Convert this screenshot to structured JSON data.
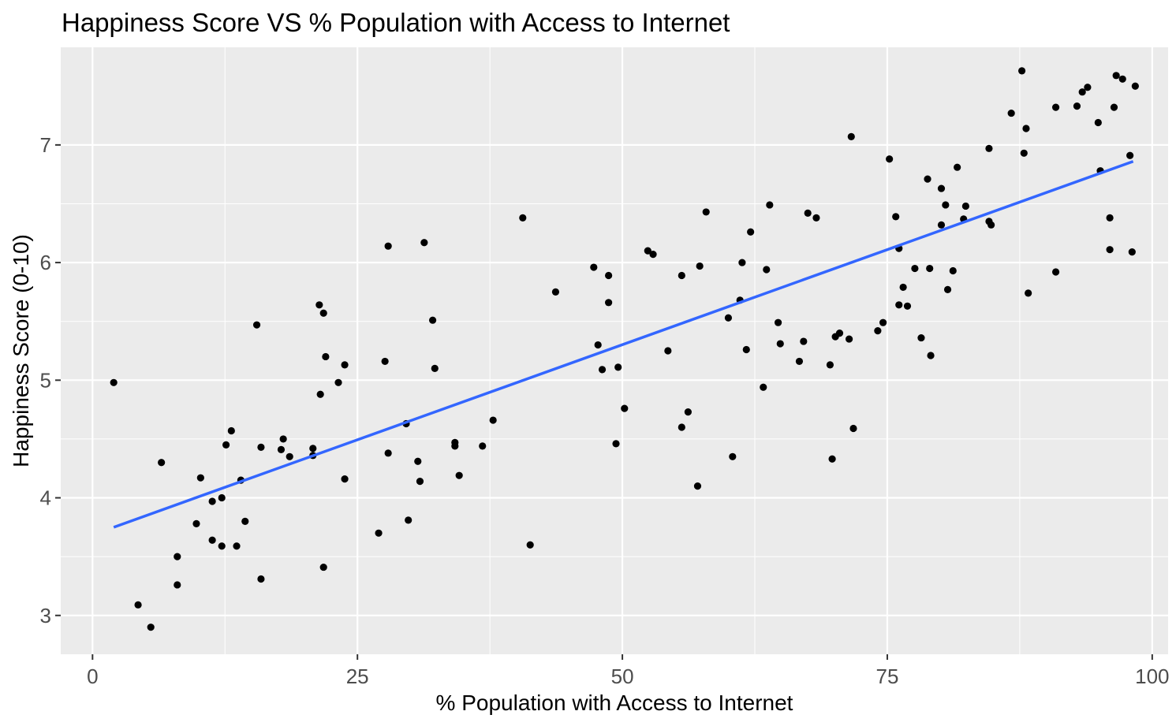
{
  "chart_data": {
    "type": "scatter",
    "title": "Happiness Score VS % Population with Access to Internet",
    "xlabel": "% Population with Access to Internet",
    "ylabel": "Happiness Score (0-10)",
    "xlim": [
      -3,
      101.5
    ],
    "ylim": [
      2.67,
      7.83
    ],
    "x_ticks": [
      0,
      25,
      50,
      75,
      100
    ],
    "x_tick_labels": [
      "0",
      "25",
      "50",
      "75",
      "100"
    ],
    "y_ticks": [
      3,
      4,
      5,
      6,
      7
    ],
    "y_tick_labels": [
      "3",
      "4",
      "5",
      "6",
      "7"
    ],
    "grid": true,
    "legend": "none",
    "colors": {
      "panel": "#ebebeb",
      "grid": "#ffffff",
      "points": "#000000",
      "trend": "#3366ff"
    },
    "trend_line": {
      "x": [
        2,
        98.2
      ],
      "y": [
        3.75,
        6.86
      ]
    },
    "points": [
      [
        2,
        4.98
      ],
      [
        4.3,
        3.09
      ],
      [
        5.5,
        2.9
      ],
      [
        6.5,
        4.3
      ],
      [
        8,
        3.5
      ],
      [
        8,
        3.26
      ],
      [
        9.8,
        3.78
      ],
      [
        10.2,
        4.17
      ],
      [
        11.3,
        3.97
      ],
      [
        11.3,
        3.64
      ],
      [
        12.2,
        4.0
      ],
      [
        12.2,
        3.59
      ],
      [
        12.6,
        4.45
      ],
      [
        13.1,
        4.57
      ],
      [
        13.6,
        3.59
      ],
      [
        14,
        4.15
      ],
      [
        14.4,
        3.8
      ],
      [
        15.5,
        5.47
      ],
      [
        15.9,
        4.43
      ],
      [
        15.9,
        3.31
      ],
      [
        17.8,
        4.41
      ],
      [
        18,
        4.5
      ],
      [
        18.6,
        4.35
      ],
      [
        20.8,
        4.42
      ],
      [
        20.8,
        4.36
      ],
      [
        21.4,
        5.64
      ],
      [
        21.5,
        4.88
      ],
      [
        21.8,
        5.57
      ],
      [
        21.8,
        3.41
      ],
      [
        22,
        5.2
      ],
      [
        23.2,
        4.98
      ],
      [
        23.8,
        5.13
      ],
      [
        23.8,
        4.16
      ],
      [
        27,
        3.7
      ],
      [
        27.6,
        5.16
      ],
      [
        27.9,
        6.14
      ],
      [
        27.9,
        4.38
      ],
      [
        29.6,
        4.63
      ],
      [
        29.8,
        3.81
      ],
      [
        30.7,
        4.31
      ],
      [
        30.9,
        4.14
      ],
      [
        31.3,
        6.17
      ],
      [
        32.1,
        5.51
      ],
      [
        32.3,
        5.1
      ],
      [
        34.2,
        4.44
      ],
      [
        34.2,
        4.47
      ],
      [
        34.6,
        4.19
      ],
      [
        36.8,
        4.44
      ],
      [
        37.8,
        4.66
      ],
      [
        40.6,
        6.38
      ],
      [
        41.3,
        3.6
      ],
      [
        43.7,
        5.75
      ],
      [
        47.3,
        5.96
      ],
      [
        47.7,
        5.3
      ],
      [
        48.1,
        5.09
      ],
      [
        48.7,
        5.66
      ],
      [
        48.7,
        5.89
      ],
      [
        49.4,
        4.46
      ],
      [
        49.6,
        5.11
      ],
      [
        50.2,
        4.76
      ],
      [
        52.4,
        6.1
      ],
      [
        52.9,
        6.07
      ],
      [
        54.3,
        5.25
      ],
      [
        55.6,
        5.89
      ],
      [
        55.6,
        4.6
      ],
      [
        56.2,
        4.73
      ],
      [
        57.1,
        4.1
      ],
      [
        57.3,
        5.97
      ],
      [
        57.9,
        6.43
      ],
      [
        60,
        5.53
      ],
      [
        60.4,
        4.35
      ],
      [
        61.1,
        5.68
      ],
      [
        61.3,
        6.0
      ],
      [
        61.7,
        5.26
      ],
      [
        62.1,
        6.26
      ],
      [
        63.3,
        4.94
      ],
      [
        63.6,
        5.94
      ],
      [
        63.9,
        6.49
      ],
      [
        64.7,
        5.49
      ],
      [
        64.9,
        5.31
      ],
      [
        66.7,
        5.16
      ],
      [
        67.1,
        5.33
      ],
      [
        67.5,
        6.42
      ],
      [
        68.3,
        6.38
      ],
      [
        69.6,
        5.13
      ],
      [
        69.8,
        4.33
      ],
      [
        70.1,
        5.37
      ],
      [
        70.5,
        5.4
      ],
      [
        71.4,
        5.35
      ],
      [
        71.6,
        7.07
      ],
      [
        71.8,
        4.59
      ],
      [
        74.1,
        5.42
      ],
      [
        74.6,
        5.49
      ],
      [
        75.2,
        6.88
      ],
      [
        75.8,
        6.39
      ],
      [
        76.1,
        6.12
      ],
      [
        76.1,
        5.64
      ],
      [
        76.5,
        5.79
      ],
      [
        76.9,
        5.63
      ],
      [
        77.6,
        5.95
      ],
      [
        78.2,
        5.36
      ],
      [
        78.8,
        6.71
      ],
      [
        79,
        5.95
      ],
      [
        79.1,
        5.21
      ],
      [
        80.1,
        6.63
      ],
      [
        80.1,
        6.32
      ],
      [
        80.5,
        6.49
      ],
      [
        80.7,
        5.77
      ],
      [
        81.2,
        5.93
      ],
      [
        81.6,
        6.81
      ],
      [
        82.2,
        6.37
      ],
      [
        82.4,
        6.48
      ],
      [
        84.6,
        6.97
      ],
      [
        84.6,
        6.35
      ],
      [
        84.8,
        6.32
      ],
      [
        86.7,
        7.27
      ],
      [
        87.7,
        7.63
      ],
      [
        87.9,
        6.93
      ],
      [
        88.1,
        7.14
      ],
      [
        88.3,
        5.74
      ],
      [
        90.9,
        7.32
      ],
      [
        90.9,
        5.92
      ],
      [
        92.9,
        7.33
      ],
      [
        93.4,
        7.45
      ],
      [
        93.9,
        7.49
      ],
      [
        94.9,
        7.19
      ],
      [
        95.1,
        6.78
      ],
      [
        96,
        6.38
      ],
      [
        96,
        6.11
      ],
      [
        96.4,
        7.32
      ],
      [
        96.6,
        7.59
      ],
      [
        97.2,
        7.56
      ],
      [
        97.9,
        6.91
      ],
      [
        98.1,
        6.09
      ],
      [
        98.4,
        7.5
      ]
    ]
  }
}
